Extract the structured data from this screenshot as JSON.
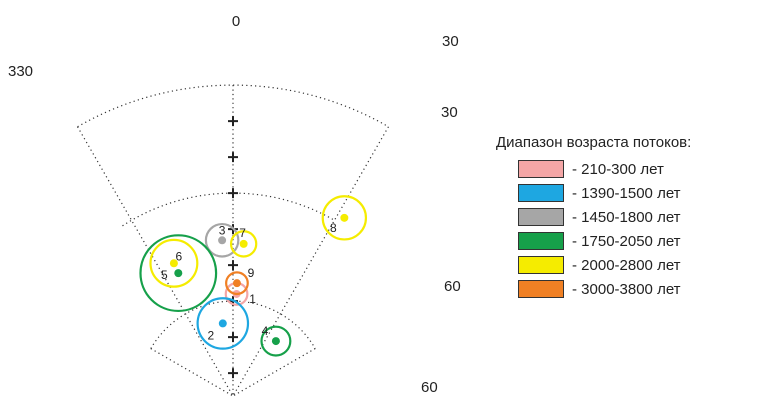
{
  "chart_data": {
    "type": "scatter",
    "projection": "polar",
    "title": "",
    "angle_labels": {
      "top": "0",
      "left_upper": "330",
      "right_upper_outer": "30",
      "right_upper_inner": "30",
      "right_lower_outer": "60",
      "right_lower_inner": "60"
    },
    "legend": {
      "title": "Диапазон возраста потоков:",
      "entries": [
        {
          "label": "- 210-300 лет",
          "color": "#f4a6a6"
        },
        {
          "label": "- 1390-1500 лет",
          "color": "#1ea7e1"
        },
        {
          "label": "- 1450-1800 лет",
          "color": "#a6a6a6"
        },
        {
          "label": "- 1750-2050 лет",
          "color": "#16a04a"
        },
        {
          "label": "- 2000-2800 лет",
          "color": "#f5ec00"
        },
        {
          "label": "- 3000-3800 лет",
          "color": "#f08024"
        }
      ]
    },
    "points": [
      {
        "id": "1",
        "group": 0,
        "declination": 2,
        "inclination": 58,
        "a95": 3
      },
      {
        "id": "2",
        "group": 1,
        "declination": 352,
        "inclination": 66,
        "a95": 7
      },
      {
        "id": "3",
        "group": 2,
        "declination": 356,
        "inclination": 43,
        "a95": 4.5
      },
      {
        "id": "4",
        "group": 3,
        "declination": 38,
        "inclination": 67,
        "a95": 4
      },
      {
        "id": "5",
        "group": 3,
        "declination": 336,
        "inclination": 49,
        "a95": 10.5
      },
      {
        "id": "6",
        "group": 4,
        "declination": 336,
        "inclination": 46,
        "a95": 6.5
      },
      {
        "id": "7",
        "group": 4,
        "declination": 4,
        "inclination": 44,
        "a95": 3.5
      },
      {
        "id": "8",
        "group": 4,
        "declination": 32,
        "inclination": 28,
        "a95": 6
      },
      {
        "id": "9",
        "group": 5,
        "declination": 2,
        "inclination": 55,
        "a95": 3
      }
    ]
  }
}
